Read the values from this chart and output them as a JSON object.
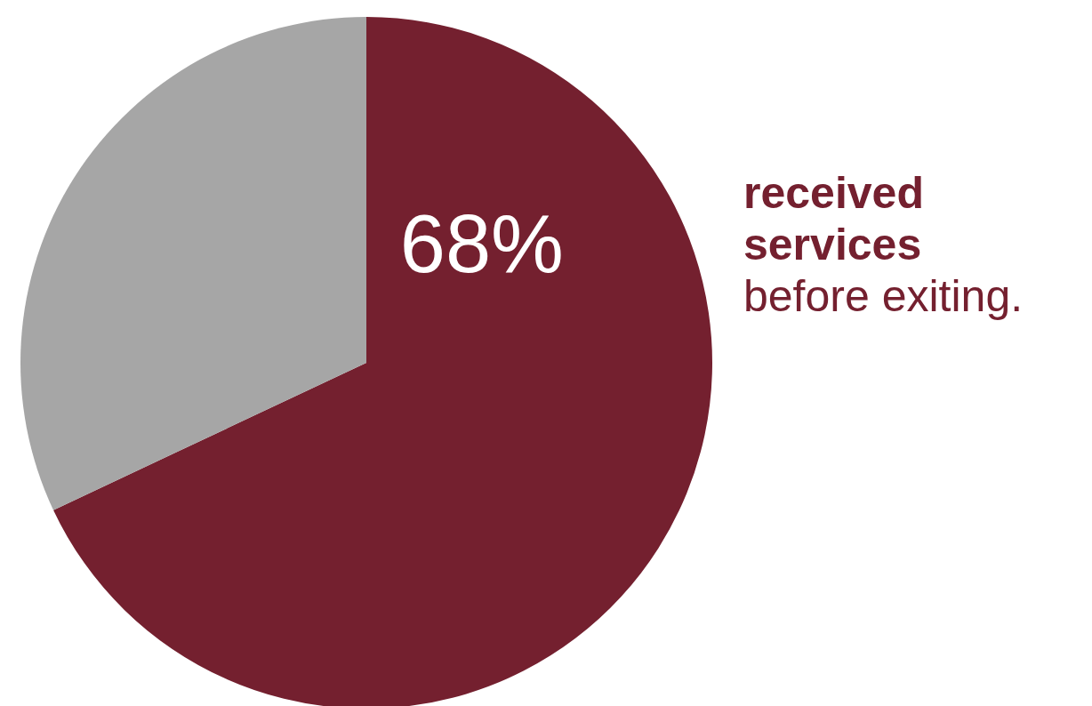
{
  "chart_data": {
    "type": "pie",
    "categories": [
      "received services",
      null
    ],
    "values": [
      68,
      32
    ],
    "colors": [
      "#74202f",
      "#a6a6a6"
    ],
    "value_labels": [
      "68%",
      null
    ],
    "annotations": [
      "before exiting."
    ]
  }
}
